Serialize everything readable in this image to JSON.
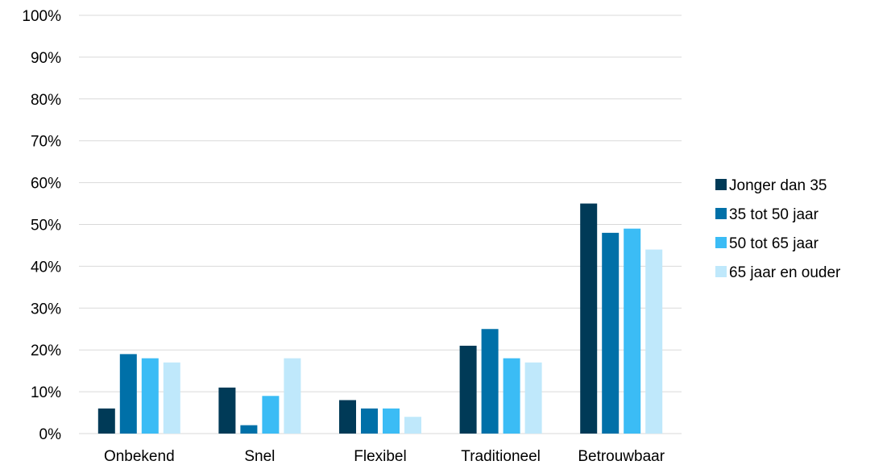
{
  "chart_data": {
    "type": "bar",
    "categories": [
      "Onbekend",
      "Snel",
      "Flexibel",
      "Traditioneel",
      "Betrouwbaar"
    ],
    "series": [
      {
        "name": "Jonger dan 35",
        "color": "#003a57",
        "values": [
          6,
          11,
          8,
          21,
          55
        ]
      },
      {
        "name": "35 tot 50 jaar",
        "color": "#0070a8",
        "values": [
          19,
          2,
          6,
          25,
          48
        ]
      },
      {
        "name": "50 tot 65 jaar",
        "color": "#3bbcf5",
        "values": [
          18,
          9,
          6,
          18,
          49
        ]
      },
      {
        "name": "65 jaar en ouder",
        "color": "#bfe8fb",
        "values": [
          17,
          18,
          4,
          17,
          44
        ]
      }
    ],
    "ylim": [
      0,
      100
    ],
    "yticks": [
      0,
      10,
      20,
      30,
      40,
      50,
      60,
      70,
      80,
      90,
      100
    ],
    "ytick_labels": [
      "0%",
      "10%",
      "20%",
      "30%",
      "40%",
      "50%",
      "60%",
      "70%",
      "80%",
      "90%",
      "100%"
    ],
    "grid": true,
    "legend_position": "right"
  }
}
